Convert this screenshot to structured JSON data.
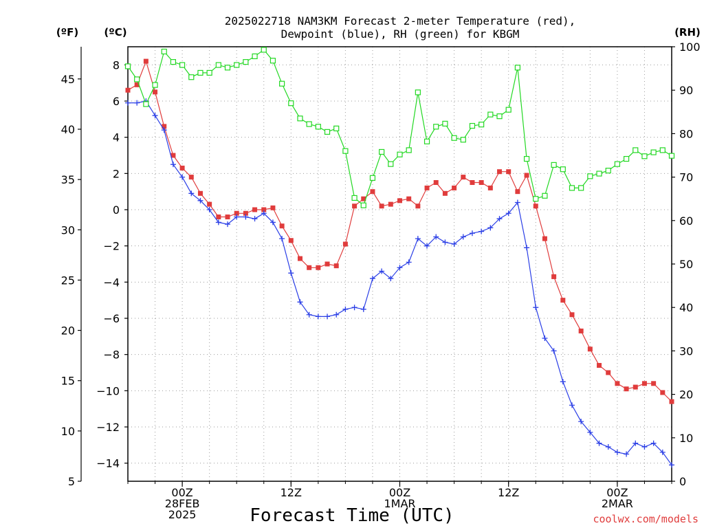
{
  "chart_data": {
    "type": "line",
    "title_line1": "2025022718 NAM3KM Forecast 2-meter Temperature (red),",
    "title_line2": "Dewpoint (blue), RH (green) for KBGM",
    "xlabel": "Forecast Time (UTC)",
    "unit_f": "(ºF)",
    "unit_c": "(ºC)",
    "unit_rh": "(RH)",
    "credit": "coolwx.com/models",
    "y_left_c": {
      "ylim": [
        -15,
        9
      ],
      "ticks": [
        "8",
        "6",
        "4",
        "2",
        "0",
        "−2",
        "−4",
        "−6",
        "−8",
        "−10",
        "−12",
        "−14"
      ]
    },
    "y_left_f": {
      "ylim": [
        5,
        48.2
      ],
      "ticks": [
        "45",
        "40",
        "35",
        "30",
        "25",
        "20",
        "15",
        "10",
        "5"
      ]
    },
    "y_right_rh": {
      "ylim": [
        0,
        100
      ],
      "ticks": [
        "100",
        "90",
        "80",
        "70",
        "60",
        "50",
        "40",
        "30",
        "20",
        "10",
        "0"
      ]
    },
    "x_ticks": [
      {
        "h": 6,
        "lines": [
          "00Z",
          "28FEB",
          "2025"
        ]
      },
      {
        "h": 18,
        "lines": [
          "12Z"
        ]
      },
      {
        "h": 30,
        "lines": [
          "00Z",
          "1MAR"
        ]
      },
      {
        "h": 42,
        "lines": [
          "12Z"
        ]
      },
      {
        "h": 54,
        "lines": [
          "00Z",
          "2MAR"
        ]
      }
    ],
    "x_range_hours": [
      0,
      60
    ],
    "grid": true,
    "series": [
      {
        "name": "Temperature",
        "color": "#e03c3c",
        "marker": "filled-square",
        "x": [
          0,
          1,
          2,
          3,
          4,
          5,
          6,
          7,
          8,
          9,
          10,
          11,
          12,
          13,
          14,
          15,
          16,
          17,
          18,
          19,
          20,
          21,
          22,
          23,
          24,
          25,
          26,
          27,
          28,
          29,
          30,
          31,
          32,
          33,
          34,
          35,
          36,
          37,
          38,
          39,
          40,
          41,
          42,
          43,
          44,
          45,
          46,
          47,
          48,
          49,
          50,
          51,
          52,
          53,
          54,
          55,
          56,
          57,
          58,
          59,
          60
        ],
        "values": [
          6.6,
          6.9,
          8.2,
          6.5,
          4.6,
          3.0,
          2.3,
          1.8,
          0.9,
          0.3,
          -0.4,
          -0.4,
          -0.2,
          -0.2,
          0.0,
          0.0,
          0.1,
          -0.9,
          -1.7,
          -2.7,
          -3.2,
          -3.2,
          -3.0,
          -3.1,
          -1.9,
          0.2,
          0.6,
          1.0,
          0.2,
          0.3,
          0.5,
          0.6,
          0.2,
          1.2,
          1.5,
          0.9,
          1.2,
          1.8,
          1.5,
          1.5,
          1.2,
          2.1,
          2.1,
          1.0,
          1.9,
          0.2,
          -1.6,
          -3.7,
          -5.0,
          -5.8,
          -6.7,
          -7.7,
          -8.6,
          -9.0,
          -9.6,
          -9.9,
          -9.8,
          -9.6,
          -9.6,
          -10.1,
          -10.6
        ]
      },
      {
        "name": "Dewpoint",
        "color": "#2a3ee6",
        "marker": "plus",
        "x": [
          0,
          1,
          2,
          3,
          4,
          5,
          6,
          7,
          8,
          9,
          10,
          11,
          12,
          13,
          14,
          15,
          16,
          17,
          18,
          19,
          20,
          21,
          22,
          23,
          24,
          25,
          26,
          27,
          28,
          29,
          30,
          31,
          32,
          33,
          34,
          35,
          36,
          37,
          38,
          39,
          40,
          41,
          42,
          43,
          44,
          45,
          46,
          47,
          48,
          49,
          50,
          51,
          52,
          53,
          54,
          55,
          56,
          57,
          58,
          59,
          60
        ],
        "values": [
          5.9,
          5.9,
          6.0,
          5.2,
          4.4,
          2.5,
          1.8,
          0.9,
          0.5,
          0.0,
          -0.7,
          -0.8,
          -0.4,
          -0.4,
          -0.5,
          -0.2,
          -0.7,
          -1.6,
          -3.5,
          -5.1,
          -5.8,
          -5.9,
          -5.9,
          -5.8,
          -5.5,
          -5.4,
          -5.5,
          -3.8,
          -3.4,
          -3.8,
          -3.2,
          -2.9,
          -1.6,
          -2.0,
          -1.5,
          -1.8,
          -1.9,
          -1.5,
          -1.3,
          -1.2,
          -1.0,
          -0.5,
          -0.2,
          0.4,
          -2.1,
          -5.4,
          -7.1,
          -7.8,
          -9.5,
          -10.8,
          -11.7,
          -12.3,
          -12.9,
          -13.1,
          -13.4,
          -13.5,
          -12.9,
          -13.1,
          -12.9,
          -13.4,
          -14.1
        ]
      },
      {
        "name": "RH",
        "color": "#22d822",
        "marker": "open-square",
        "x": [
          0,
          1,
          2,
          3,
          4,
          5,
          6,
          7,
          8,
          9,
          10,
          11,
          12,
          13,
          14,
          15,
          16,
          17,
          18,
          19,
          20,
          21,
          22,
          23,
          24,
          25,
          26,
          27,
          28,
          29,
          30,
          31,
          32,
          33,
          34,
          35,
          36,
          37,
          38,
          39,
          40,
          41,
          42,
          43,
          44,
          45,
          46,
          47,
          48,
          49,
          50,
          51,
          52,
          53,
          54,
          55,
          56,
          57,
          58,
          59,
          60
        ],
        "values": [
          95.5,
          92.5,
          86.8,
          91.2,
          98.9,
          96.5,
          95.8,
          93.0,
          94.0,
          94.0,
          95.8,
          95.2,
          95.8,
          96.5,
          97.8,
          99.3,
          96.8,
          91.5,
          87.0,
          83.5,
          82.2,
          81.6,
          80.4,
          81.2,
          76.0,
          65.2,
          63.5,
          69.8,
          75.8,
          73.0,
          75.2,
          76.2,
          89.5,
          78.2,
          81.6,
          82.3,
          79.0,
          78.6,
          81.8,
          82.1,
          84.4,
          84.0,
          85.5,
          95.2,
          74.2,
          65.0,
          65.7,
          72.8,
          71.8,
          67.5,
          67.5,
          70.2,
          70.8,
          71.5,
          73.0,
          74.2,
          76.2,
          74.8,
          75.7,
          76.2,
          74.9
        ]
      }
    ]
  }
}
